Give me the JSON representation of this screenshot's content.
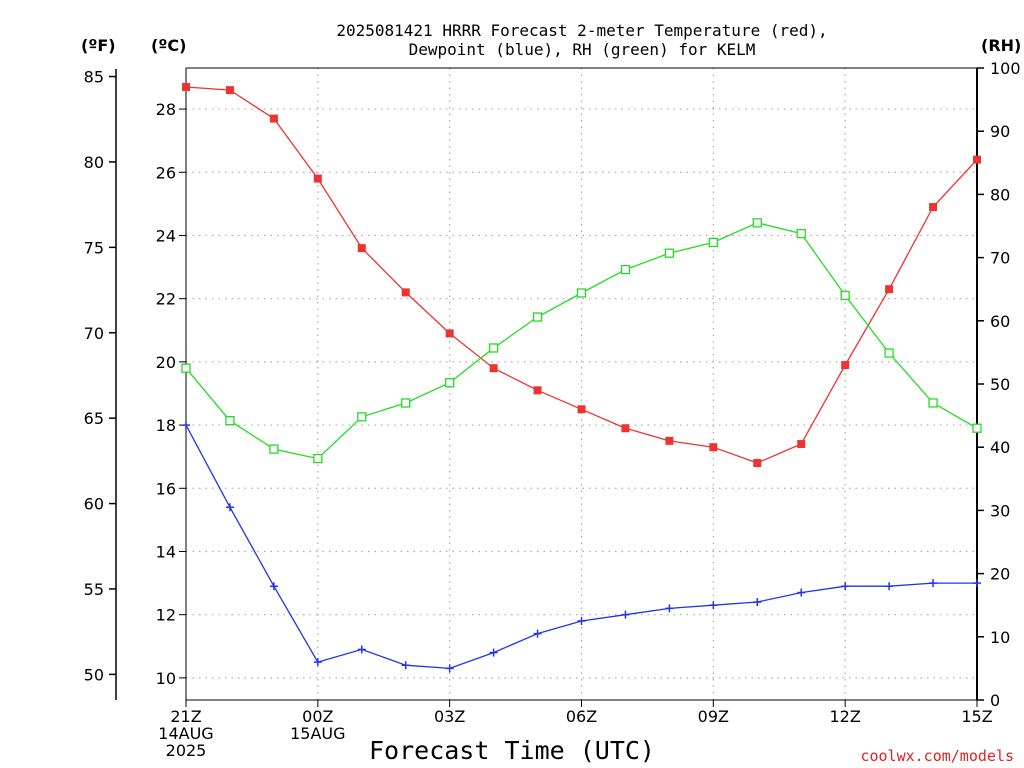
{
  "title": {
    "line1": "2025081421 HRRR Forecast 2-meter Temperature (red),",
    "line2": "Dewpoint (blue), RH (green) for KELM"
  },
  "axis_units": {
    "fahrenheit": "(ºF)",
    "celsius": "(ºC)",
    "rh": "(RH)"
  },
  "xlabel": "Forecast Time (UTC)",
  "watermark": "coolwx.com/models",
  "colors": {
    "temperature": "#ee3333",
    "dewpoint": "#2233ee",
    "rh": "#22dd22",
    "grid": "#aaaaaa",
    "axis": "#000000",
    "watermark": "#dd2222"
  },
  "chart_data": {
    "type": "line",
    "x_ticks": [
      {
        "value": 0,
        "labels": [
          "21Z",
          "14AUG",
          "2025"
        ]
      },
      {
        "value": 3,
        "labels": [
          "00Z",
          "15AUG"
        ]
      },
      {
        "value": 6,
        "labels": [
          "03Z"
        ]
      },
      {
        "value": 9,
        "labels": [
          "06Z"
        ]
      },
      {
        "value": 12,
        "labels": [
          "09Z"
        ]
      },
      {
        "value": 15,
        "labels": [
          "12Z"
        ]
      },
      {
        "value": 18,
        "labels": [
          "15Z"
        ]
      }
    ],
    "xlim": [
      0,
      18
    ],
    "celsius_ticks": [
      "10",
      "12",
      "14",
      "16",
      "18",
      "20",
      "22",
      "24",
      "26",
      "28"
    ],
    "celsius_lim": [
      9.3,
      29.3
    ],
    "fahrenheit_ticks": [
      "50",
      "55",
      "60",
      "65",
      "70",
      "75",
      "80",
      "85"
    ],
    "fahrenheit_lim": [
      48.5,
      85.5
    ],
    "rh_ticks": [
      "0",
      "10",
      "20",
      "30",
      "40",
      "50",
      "60",
      "70",
      "80",
      "90",
      "100"
    ],
    "rh_lim": [
      0,
      100
    ],
    "grid": true,
    "series": [
      {
        "key": "temperature",
        "axis": "celsius",
        "marker": "filled-square",
        "x": [
          0,
          1,
          2,
          3,
          4,
          5,
          6,
          7,
          8,
          9,
          10,
          11,
          12,
          13,
          14,
          15,
          16,
          17,
          18
        ],
        "values": [
          28.7,
          28.6,
          27.7,
          25.8,
          23.6,
          22.2,
          20.9,
          19.8,
          19.1,
          18.5,
          17.9,
          17.5,
          17.3,
          16.8,
          17.4,
          19.9,
          22.3,
          24.9,
          26.4
        ]
      },
      {
        "key": "dewpoint",
        "axis": "celsius",
        "marker": "plus",
        "x": [
          0,
          1,
          2,
          3,
          4,
          5,
          6,
          7,
          8,
          9,
          10,
          11,
          12,
          13,
          14,
          15,
          16,
          17,
          18
        ],
        "values": [
          18.0,
          15.4,
          12.9,
          10.5,
          10.9,
          10.4,
          10.3,
          10.8,
          11.4,
          11.8,
          12.0,
          12.2,
          12.3,
          12.4,
          12.7,
          12.9,
          12.9,
          13.0,
          13.0
        ]
      },
      {
        "key": "rh",
        "axis": "rh",
        "marker": "open-square",
        "x": [
          0,
          1,
          2,
          3,
          4,
          5,
          6,
          7,
          8,
          9,
          10,
          11,
          12,
          13,
          14,
          15,
          16,
          17,
          18
        ],
        "values": [
          52.5,
          44.2,
          39.7,
          38.2,
          44.8,
          47.0,
          50.2,
          55.7,
          60.6,
          64.4,
          68.1,
          70.7,
          72.4,
          75.5,
          73.8,
          64.0,
          54.9,
          47.0,
          43.0
        ]
      }
    ]
  }
}
